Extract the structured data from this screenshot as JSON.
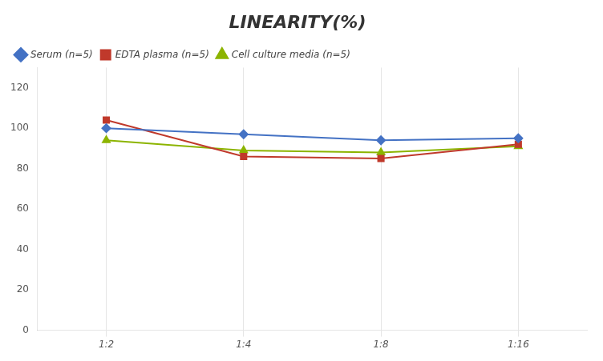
{
  "chart_data": {
    "type": "line",
    "title": "LINEARITY(%)",
    "categories": [
      "1:2",
      "1:4",
      "1:8",
      "1:16"
    ],
    "series": [
      {
        "name": "Serum (n=5)",
        "color": "#4472C4",
        "marker": "diamond",
        "values": [
          100,
          97,
          94,
          95
        ]
      },
      {
        "name": "EDTA plasma (n=5)",
        "color": "#C0392B",
        "marker": "square",
        "values": [
          104,
          86,
          85,
          92
        ]
      },
      {
        "name": "Cell culture media (n=5)",
        "color": "#8CB400",
        "marker": "triangle",
        "values": [
          94,
          89,
          88,
          91
        ]
      }
    ],
    "ylim": [
      0,
      130
    ],
    "yticks": [
      0,
      20,
      40,
      60,
      80,
      100,
      120
    ],
    "grid": "x",
    "legend": "upper left"
  }
}
